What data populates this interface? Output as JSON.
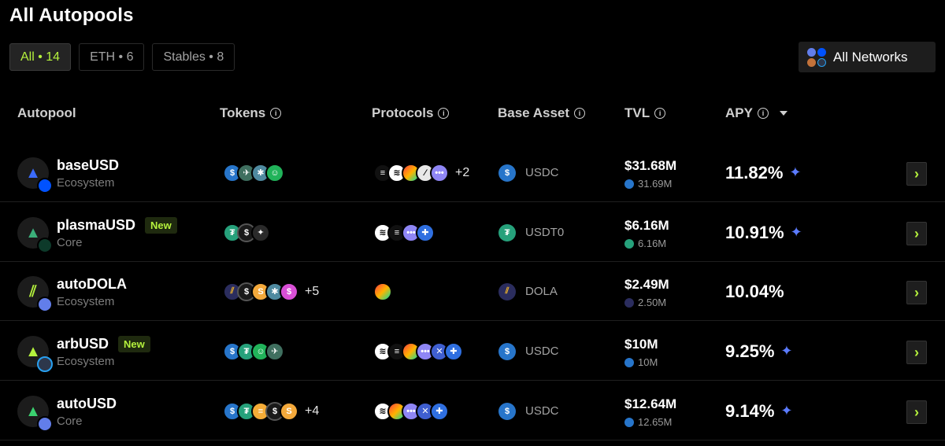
{
  "page": {
    "title": "All Autopools"
  },
  "filters": [
    {
      "label": "All • 14",
      "active": true
    },
    {
      "label": "ETH • 6",
      "active": false
    },
    {
      "label": "Stables • 8",
      "active": false
    }
  ],
  "network_select": {
    "label": "All Networks"
  },
  "columns": {
    "autopool": "Autopool",
    "tokens": "Tokens",
    "protocols": "Protocols",
    "base_asset": "Base Asset",
    "tvl": "TVL",
    "apy": "APY"
  },
  "colors": {
    "accent": "#b5f23d",
    "usdc": "#2775ca",
    "usdt": "#26a17b",
    "dola": "#2b2d5e",
    "eth": "#627eea",
    "sparkle": "#5b7bff"
  },
  "rows": [
    {
      "name": "baseUSD",
      "tier": "Ecosystem",
      "badge": "",
      "more_tokens": "",
      "more_protocols": "+2",
      "base_asset": "USDC",
      "tvl": "$31.68M",
      "tvl_sub": "31.69M",
      "apy": "11.82%",
      "sparkle": true
    },
    {
      "name": "plasmaUSD",
      "tier": "Core",
      "badge": "New",
      "more_tokens": "",
      "more_protocols": "",
      "base_asset": "USDT0",
      "tvl": "$6.16M",
      "tvl_sub": "6.16M",
      "apy": "10.91%",
      "sparkle": true
    },
    {
      "name": "autoDOLA",
      "tier": "Ecosystem",
      "badge": "",
      "more_tokens": "+5",
      "more_protocols": "",
      "base_asset": "DOLA",
      "tvl": "$2.49M",
      "tvl_sub": "2.50M",
      "apy": "10.04%",
      "sparkle": false
    },
    {
      "name": "arbUSD",
      "tier": "Ecosystem",
      "badge": "New",
      "more_tokens": "",
      "more_protocols": "",
      "base_asset": "USDC",
      "tvl": "$10M",
      "tvl_sub": "10M",
      "apy": "9.25%",
      "sparkle": true
    },
    {
      "name": "autoUSD",
      "tier": "Core",
      "badge": "",
      "more_tokens": "+4",
      "more_protocols": "",
      "base_asset": "USDC",
      "tvl": "$12.64M",
      "tvl_sub": "12.65M",
      "apy": "9.14%",
      "sparkle": true
    }
  ]
}
